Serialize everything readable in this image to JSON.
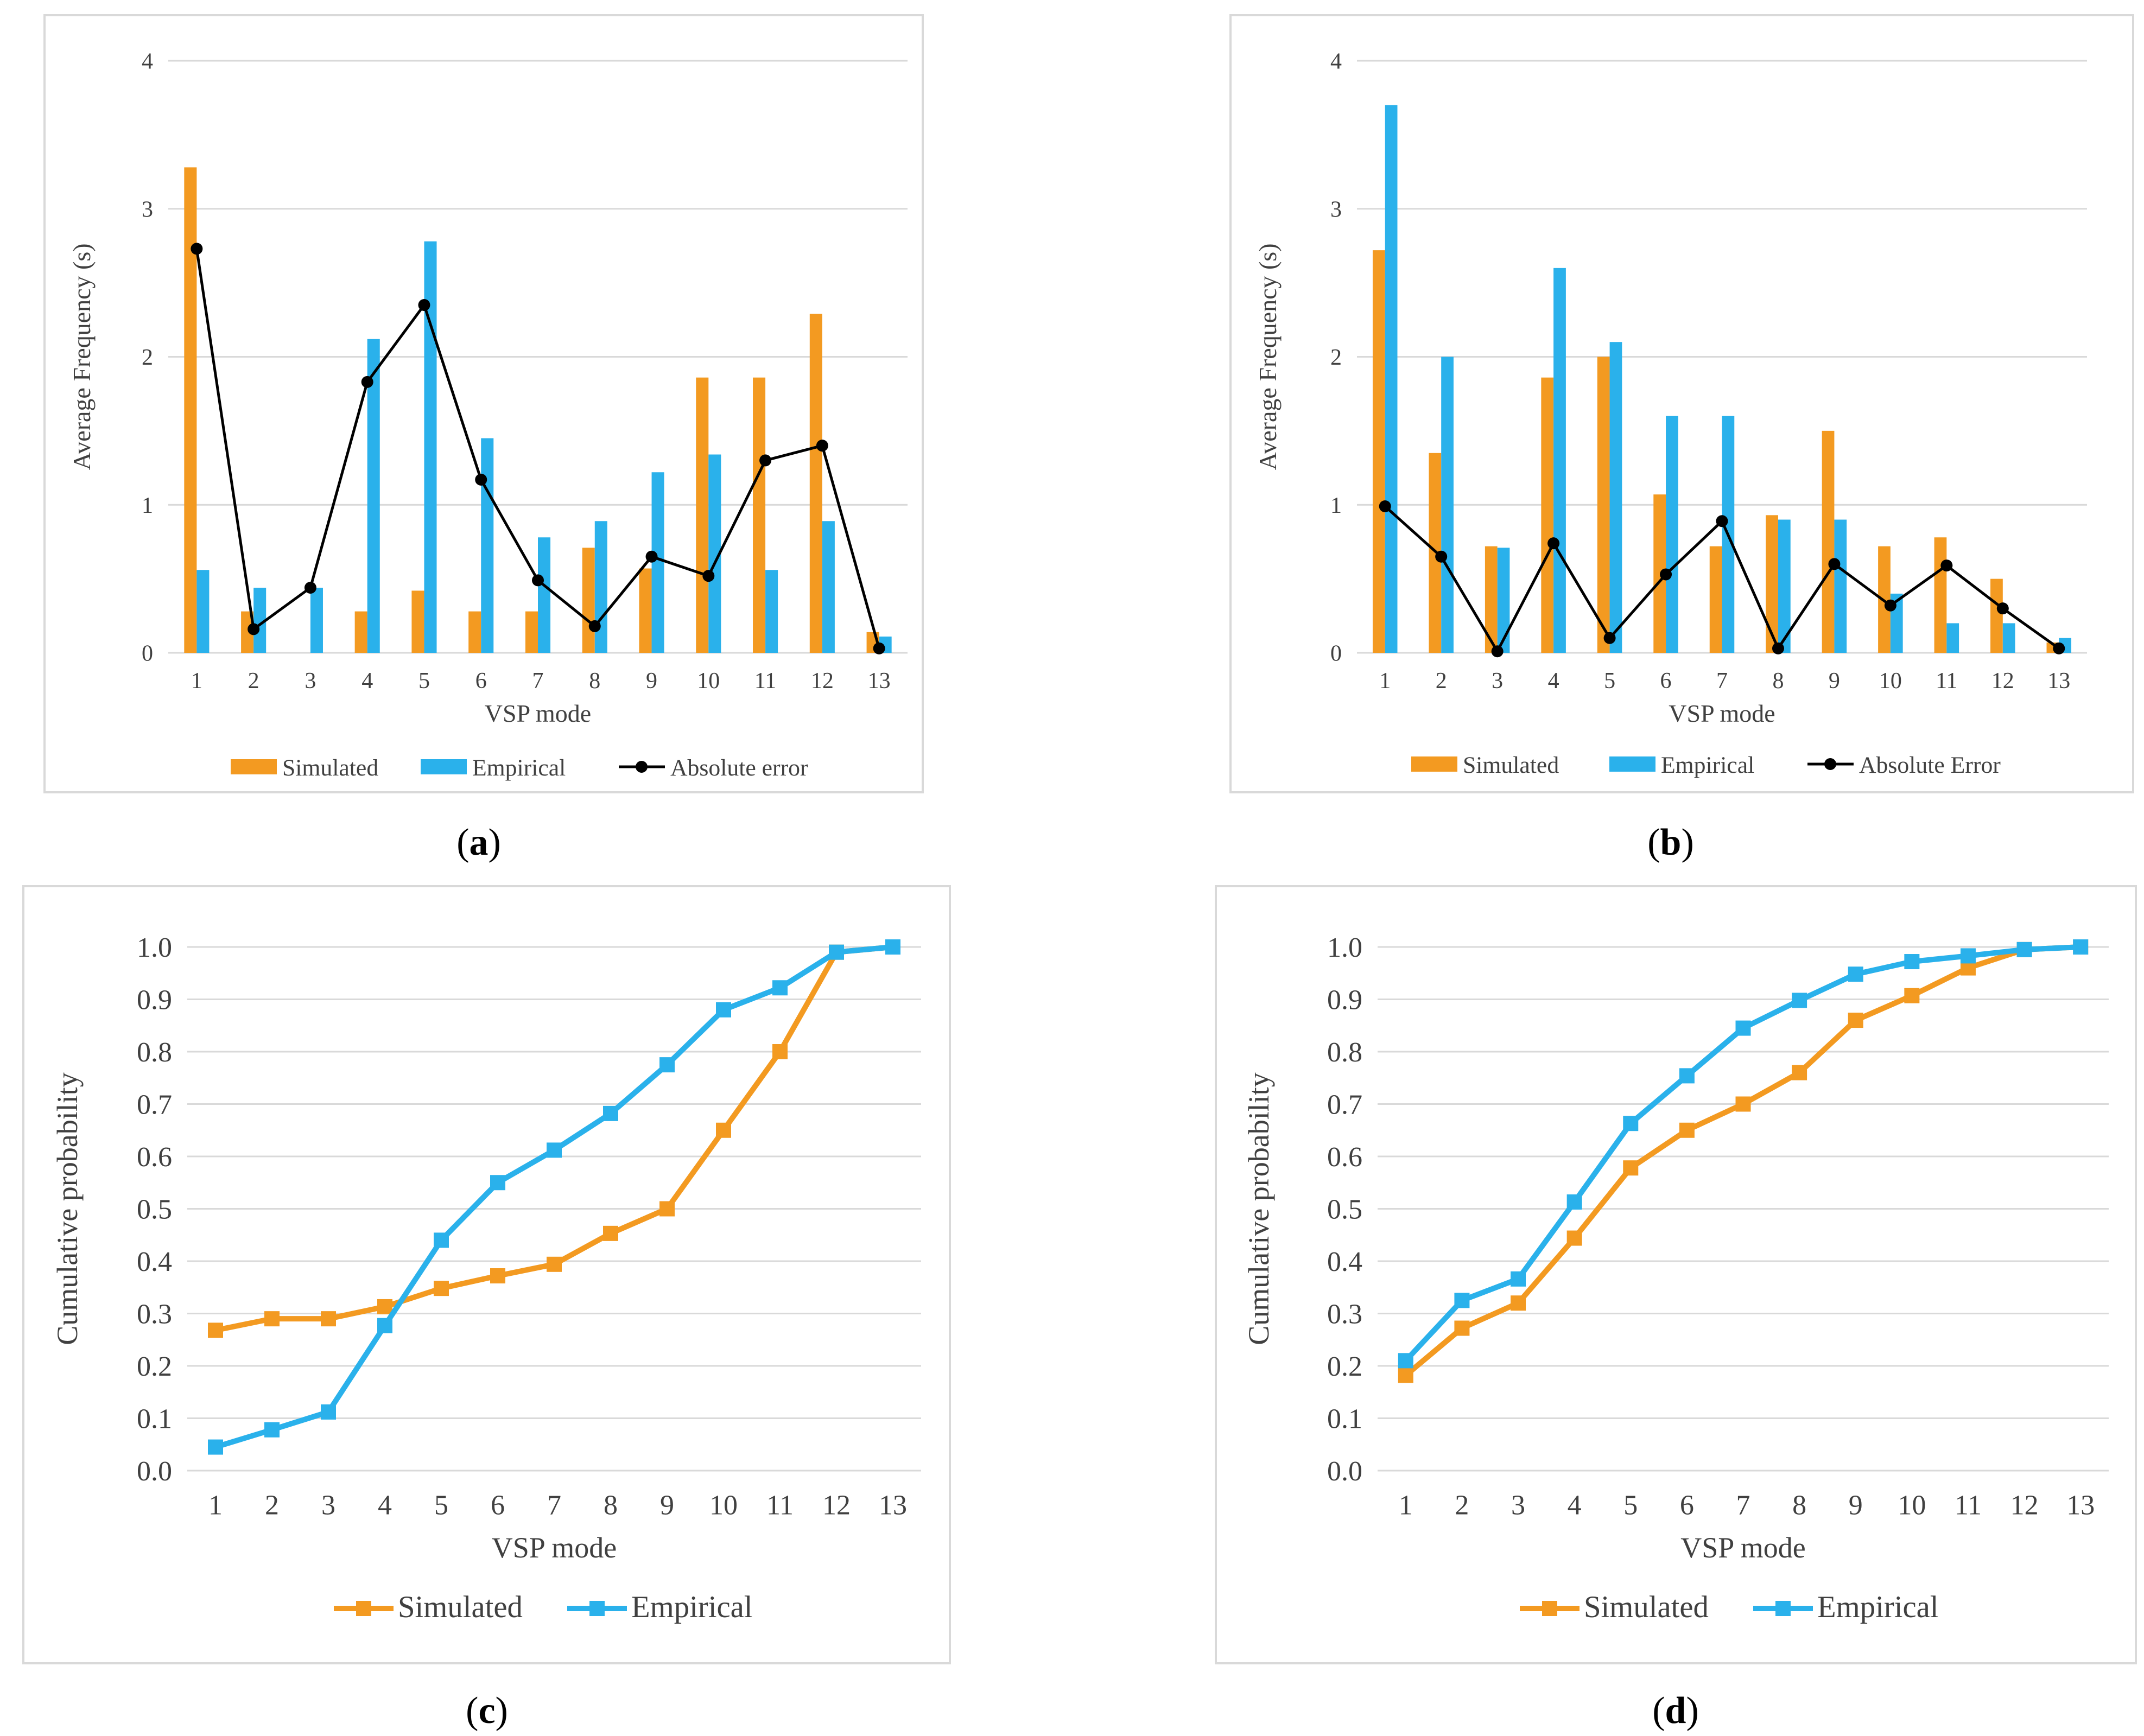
{
  "colors": {
    "simulated": "#F39A21",
    "empirical": "#2AB1EB",
    "error": "#000000",
    "grid": "#D9D9D9",
    "frame": "#D9D9D9",
    "text": "#404040",
    "caption": "#000000"
  },
  "panels": [
    {
      "id": "a",
      "caption": "a"
    },
    {
      "id": "b",
      "caption": "b"
    },
    {
      "id": "c",
      "caption": "c"
    },
    {
      "id": "d",
      "caption": "d"
    }
  ],
  "chart_data": [
    {
      "panel": "a",
      "type": "bar",
      "title": "",
      "xlabel": "VSP mode",
      "ylabel": "Average Frequency (s)",
      "ylim": [
        0,
        4
      ],
      "yticks": [
        "0",
        "1",
        "2",
        "3",
        "4"
      ],
      "grid": true,
      "legend_position": "bottom",
      "categories": [
        "1",
        "2",
        "3",
        "4",
        "5",
        "6",
        "7",
        "8",
        "9",
        "10",
        "11",
        "12",
        "13"
      ],
      "series": [
        {
          "name": "Simulated",
          "type": "bar",
          "values": [
            3.28,
            0.28,
            0,
            0.28,
            0.42,
            0.28,
            0.28,
            0.71,
            0.57,
            1.86,
            1.86,
            2.29,
            0.14
          ]
        },
        {
          "name": "Empirical",
          "type": "bar",
          "values": [
            0.56,
            0.44,
            0.44,
            2.12,
            2.78,
            1.45,
            0.78,
            0.89,
            1.22,
            1.34,
            0.56,
            0.89,
            0.11
          ]
        },
        {
          "name": "Absolute error",
          "type": "line",
          "values": [
            2.73,
            0.16,
            0.44,
            1.83,
            2.35,
            1.17,
            0.49,
            0.18,
            0.65,
            0.52,
            1.3,
            1.4,
            0.03
          ]
        }
      ]
    },
    {
      "panel": "b",
      "type": "bar",
      "title": "",
      "xlabel": "VSP mode",
      "ylabel": "Average Frequency (s)",
      "ylim": [
        0,
        4
      ],
      "yticks": [
        "0",
        "1",
        "2",
        "3",
        "4"
      ],
      "grid": true,
      "legend_position": "bottom",
      "categories": [
        "1",
        "2",
        "3",
        "4",
        "5",
        "6",
        "7",
        "8",
        "9",
        "10",
        "11",
        "12",
        "13"
      ],
      "series": [
        {
          "name": "Simulated",
          "type": "bar",
          "values": [
            2.72,
            1.35,
            0.72,
            1.86,
            2.0,
            1.07,
            0.72,
            0.93,
            1.5,
            0.72,
            0.78,
            0.5,
            0.07
          ]
        },
        {
          "name": "Empirical",
          "type": "bar",
          "values": [
            3.7,
            2.0,
            0.71,
            2.6,
            2.1,
            1.6,
            1.6,
            0.9,
            0.9,
            0.4,
            0.2,
            0.2,
            0.1
          ]
        },
        {
          "name": "Absolute Error",
          "type": "line",
          "values": [
            0.99,
            0.65,
            0.01,
            0.74,
            0.1,
            0.53,
            0.89,
            0.03,
            0.6,
            0.32,
            0.59,
            0.3,
            0.03
          ]
        }
      ]
    },
    {
      "panel": "c",
      "type": "line",
      "title": "",
      "xlabel": "VSP mode",
      "ylabel": "Cumulative probability",
      "ylim": [
        0,
        1
      ],
      "yticks": [
        "0.0",
        "0.1",
        "0.2",
        "0.3",
        "0.4",
        "0.5",
        "0.6",
        "0.7",
        "0.8",
        "0.9",
        "1.0"
      ],
      "grid": true,
      "legend_position": "bottom",
      "categories": [
        "1",
        "2",
        "3",
        "4",
        "5",
        "6",
        "7",
        "8",
        "9",
        "10",
        "11",
        "12",
        "13"
      ],
      "series": [
        {
          "name": "Simulated",
          "values": [
            0.268,
            0.29,
            0.29,
            0.313,
            0.348,
            0.372,
            0.394,
            0.453,
            0.5,
            0.65,
            0.8,
            0.99,
            1.0
          ]
        },
        {
          "name": "Empirical",
          "values": [
            0.045,
            0.078,
            0.112,
            0.277,
            0.44,
            0.55,
            0.612,
            0.682,
            0.775,
            0.88,
            0.922,
            0.99,
            1.0
          ]
        }
      ]
    },
    {
      "panel": "d",
      "type": "line",
      "title": "",
      "xlabel": "VSP mode",
      "ylabel": "Cumulative probability",
      "ylim": [
        0,
        1
      ],
      "yticks": [
        "0.0",
        "0.1",
        "0.2",
        "0.3",
        "0.4",
        "0.5",
        "0.6",
        "0.7",
        "0.8",
        "0.9",
        "1.0"
      ],
      "grid": true,
      "legend_position": "bottom",
      "categories": [
        "1",
        "2",
        "3",
        "4",
        "5",
        "6",
        "7",
        "8",
        "9",
        "10",
        "11",
        "12",
        "13"
      ],
      "series": [
        {
          "name": "Simulated",
          "values": [
            0.182,
            0.272,
            0.32,
            0.444,
            0.578,
            0.65,
            0.7,
            0.76,
            0.86,
            0.907,
            0.96,
            0.995,
            1.0
          ]
        },
        {
          "name": "Empirical",
          "values": [
            0.21,
            0.325,
            0.366,
            0.513,
            0.663,
            0.754,
            0.845,
            0.898,
            0.948,
            0.972,
            0.983,
            0.995,
            1.0
          ]
        }
      ]
    }
  ]
}
